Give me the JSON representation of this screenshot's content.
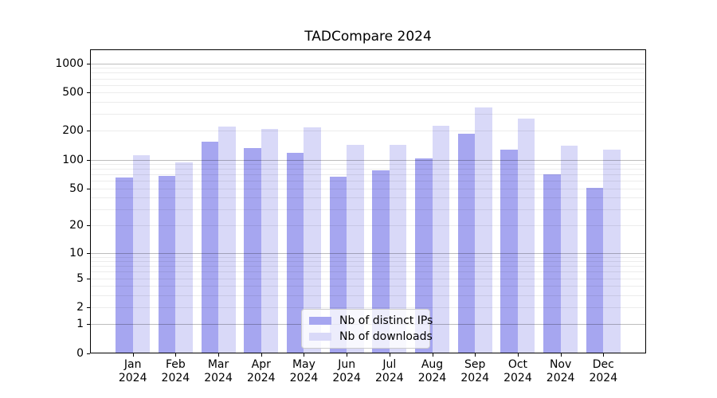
{
  "chart_data": {
    "type": "bar",
    "title": "TADCompare 2024",
    "xlabel": "",
    "ylabel": "",
    "categories": [
      "Jan 2024",
      "Feb 2024",
      "Mar 2024",
      "Apr 2024",
      "May 2024",
      "Jun 2024",
      "Jul 2024",
      "Aug 2024",
      "Sep 2024",
      "Oct 2024",
      "Nov 2024",
      "Dec 2024"
    ],
    "series": [
      {
        "name": "Nb of distinct IPs",
        "color": "#a6a6f0",
        "values": [
          65,
          68,
          155,
          133,
          118,
          66,
          78,
          103,
          186,
          127,
          70,
          51
        ]
      },
      {
        "name": "Nb of downloads",
        "color": "#d9d9f8",
        "values": [
          112,
          94,
          220,
          210,
          217,
          142,
          143,
          224,
          353,
          270,
          141,
          127
        ]
      }
    ],
    "yscale": "log1p",
    "yticks": [
      0,
      1,
      2,
      5,
      10,
      20,
      50,
      100,
      200,
      500,
      1000
    ],
    "ylim": [
      0,
      1400
    ],
    "grid": "horizontal major+minor, grid on",
    "legend_position": "lower center inside plot",
    "legend_border_color": "#cccccc"
  }
}
